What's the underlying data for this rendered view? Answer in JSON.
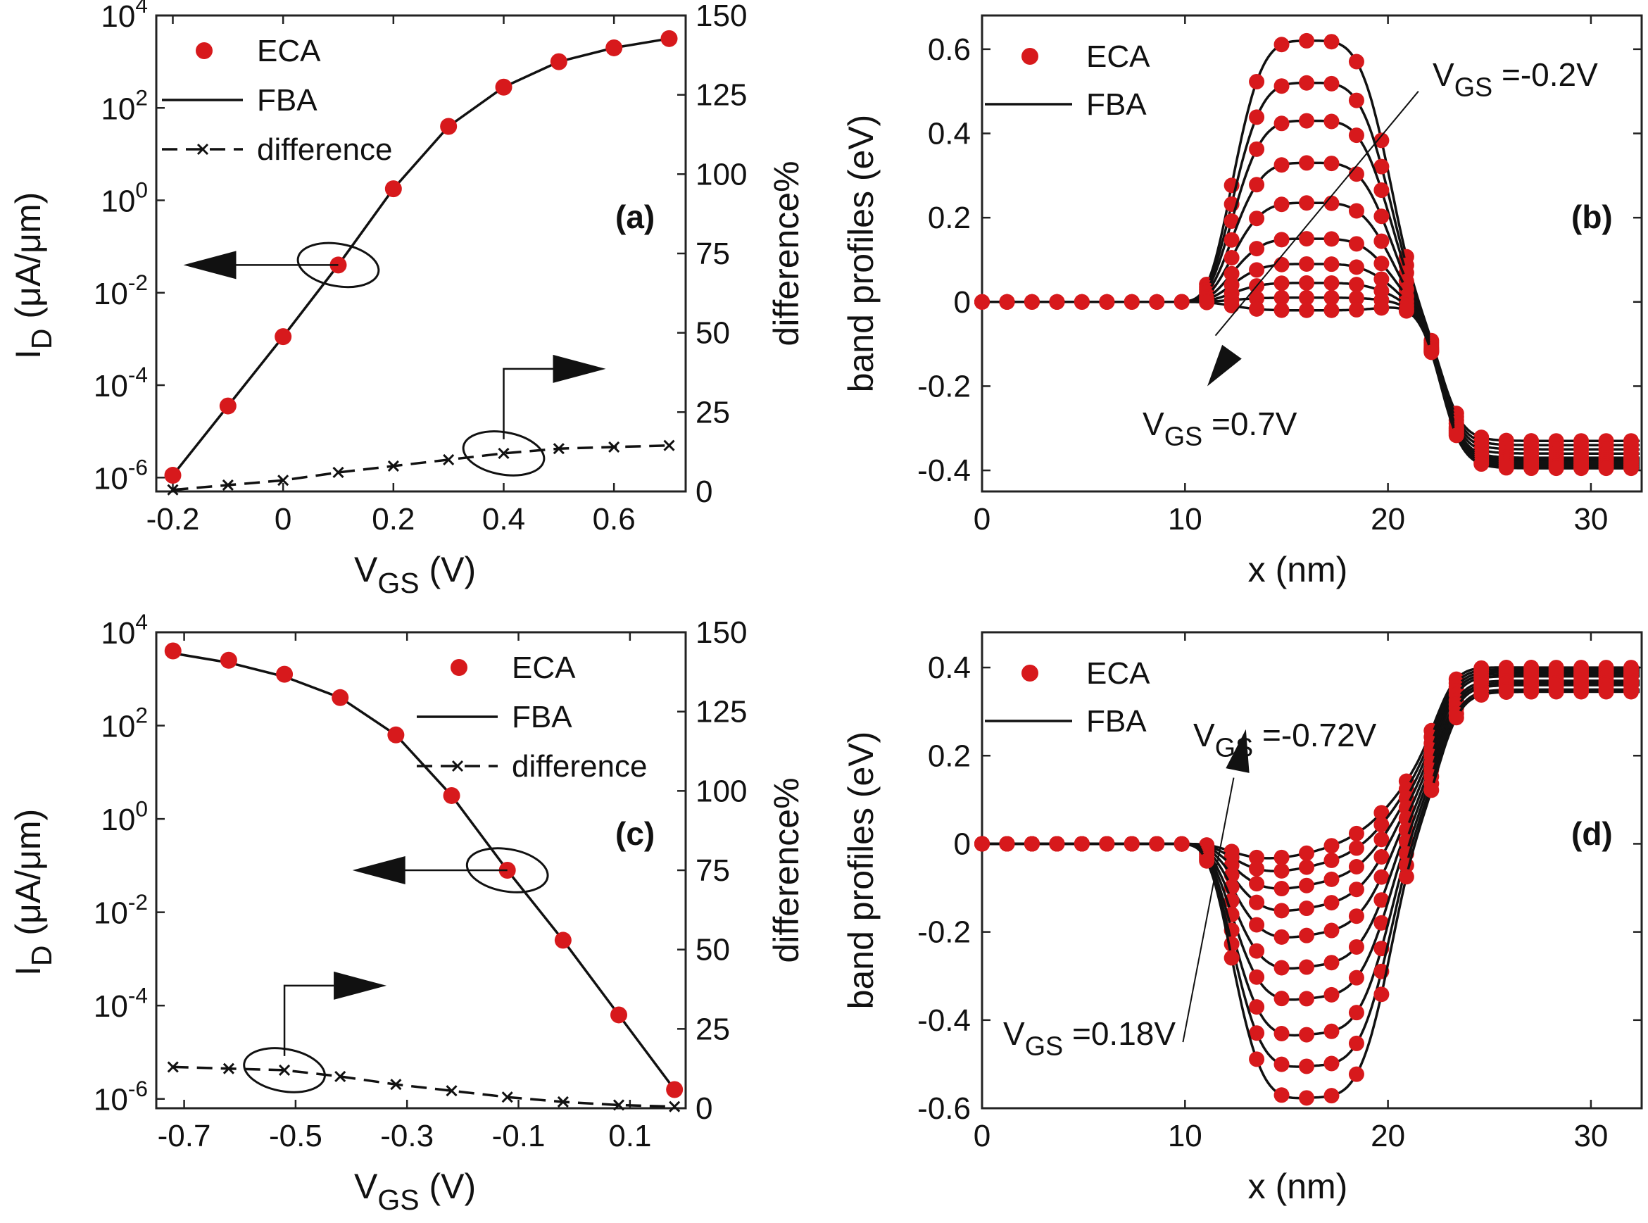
{
  "chart_data": [
    {
      "panel": "a",
      "type": "scatter",
      "panel_label": "(a)",
      "xlabel_main": "V",
      "xlabel_sub": "GS",
      "xlabel_unit": "(V)",
      "ylabel_main": "I",
      "ylabel_sub": "D",
      "ylabel_unit": "(μA/μm)",
      "y2label": "difference%",
      "xlim": [
        -0.23,
        0.73
      ],
      "ylim": [
        -6.3,
        4
      ],
      "yscale": "log",
      "y2lim": [
        0,
        150
      ],
      "xticks": [
        -0.2,
        0,
        0.2,
        0.4,
        0.6
      ],
      "xtick_labels": [
        "-0.2",
        "0",
        "0.2",
        "0.4",
        "0.6"
      ],
      "yticks": [
        -6,
        -4,
        -2,
        0,
        2,
        4
      ],
      "ytick_labels": [
        {
          "base": "10",
          "exp": "-6"
        },
        {
          "base": "10",
          "exp": "-4"
        },
        {
          "base": "10",
          "exp": "-2"
        },
        {
          "base": "10",
          "exp": "0"
        },
        {
          "base": "10",
          "exp": "2"
        },
        {
          "base": "10",
          "exp": "4"
        }
      ],
      "y2ticks": [
        0,
        25,
        50,
        75,
        100,
        125,
        150
      ],
      "y2tick_labels": [
        "0",
        "25",
        "50",
        "75",
        "100",
        "125",
        "150"
      ],
      "legend": {
        "placement": "top-left",
        "eca": "ECA",
        "fba": "FBA",
        "difference": "difference"
      },
      "x": [
        -0.2,
        -0.1,
        0,
        0.1,
        0.2,
        0.3,
        0.4,
        0.5,
        0.6,
        0.7
      ],
      "eca_log10": [
        -5.95,
        -4.45,
        -2.95,
        -1.4,
        0.25,
        1.6,
        2.45,
        3.0,
        3.3,
        3.5
      ],
      "fba_log10": [
        -5.95,
        -4.45,
        -2.95,
        -1.4,
        0.25,
        1.6,
        2.45,
        3.0,
        3.3,
        3.5
      ],
      "difference": [
        0.5,
        2.0,
        3.5,
        6.0,
        8.0,
        10.0,
        12.0,
        13.5,
        14.0,
        14.5
      ],
      "annotations": {
        "left_arrow": {
          "ellipse_at": [
            0.1,
            -1.4
          ],
          "points_to": "left-axis"
        },
        "right_arrow": {
          "ellipse_at": [
            0.4,
            12
          ],
          "points_to": "right-axis"
        }
      }
    },
    {
      "panel": "b",
      "type": "line",
      "panel_label": "(b)",
      "xlabel": "x (nm)",
      "ylabel": "band profiles (eV)",
      "xlim": [
        0,
        32.5
      ],
      "ylim": [
        -0.45,
        0.68
      ],
      "xticks": [
        0,
        10,
        20,
        30
      ],
      "xtick_labels": [
        "0",
        "10",
        "20",
        "30"
      ],
      "yticks": [
        -0.4,
        -0.2,
        0,
        0.2,
        0.4,
        0.6
      ],
      "ytick_labels": [
        "-0.4",
        "-0.2",
        "0",
        "0.2",
        "0.4",
        "0.6"
      ],
      "legend": {
        "placement": "top-left",
        "eca": "ECA",
        "fba": "FBA"
      },
      "annotation_top": {
        "main": "V",
        "sub": "GS",
        "rest": "=-0.2V"
      },
      "annotation_bottom": {
        "main": "V",
        "sub": "GS",
        "rest": "=0.7V"
      },
      "profile_shape": {
        "flat_until": 9.5,
        "rise_center": 10.8,
        "rise_width": 0.55,
        "fall_center": 22.6,
        "fall_width": 0.55,
        "barrier_center": 16.2,
        "barrier_sigma": 4.2
      },
      "curves": [
        {
          "peak": 0.62,
          "right_level": -0.33
        },
        {
          "peak": 0.52,
          "right_level": -0.34
        },
        {
          "peak": 0.43,
          "right_level": -0.35
        },
        {
          "peak": 0.33,
          "right_level": -0.36
        },
        {
          "peak": 0.235,
          "right_level": -0.37
        },
        {
          "peak": 0.15,
          "right_level": -0.375
        },
        {
          "peak": 0.09,
          "right_level": -0.38
        },
        {
          "peak": 0.045,
          "right_level": -0.385
        },
        {
          "peak": 0.01,
          "right_level": -0.39
        },
        {
          "peak": -0.02,
          "right_level": -0.395
        }
      ]
    },
    {
      "panel": "c",
      "type": "scatter",
      "panel_label": "(c)",
      "xlabel_main": "V",
      "xlabel_sub": "GS",
      "xlabel_unit": "(V)",
      "ylabel_main": "I",
      "ylabel_sub": "D",
      "ylabel_unit": "(μA/μm)",
      "y2label": "difference%",
      "xlim": [
        -0.75,
        0.2
      ],
      "ylim": [
        -6.2,
        4
      ],
      "yscale": "log",
      "y2lim": [
        0,
        150
      ],
      "xticks": [
        -0.7,
        -0.5,
        -0.3,
        -0.1,
        0.1
      ],
      "xtick_labels": [
        "-0.7",
        "-0.5",
        "-0.3",
        "-0.1",
        "0.1"
      ],
      "yticks": [
        -6,
        -4,
        -2,
        0,
        2,
        4
      ],
      "ytick_labels": [
        {
          "base": "10",
          "exp": "-6"
        },
        {
          "base": "10",
          "exp": "-4"
        },
        {
          "base": "10",
          "exp": "-2"
        },
        {
          "base": "10",
          "exp": "0"
        },
        {
          "base": "10",
          "exp": "2"
        },
        {
          "base": "10",
          "exp": "4"
        }
      ],
      "y2ticks": [
        0,
        25,
        50,
        75,
        100,
        125,
        150
      ],
      "y2tick_labels": [
        "0",
        "25",
        "50",
        "75",
        "100",
        "125",
        "150"
      ],
      "legend": {
        "placement": "top-right",
        "eca": "ECA",
        "fba": "FBA",
        "difference": "difference"
      },
      "x": [
        -0.72,
        -0.62,
        -0.52,
        -0.42,
        -0.32,
        -0.22,
        -0.12,
        -0.02,
        0.08,
        0.18
      ],
      "eca_log10": [
        3.6,
        3.4,
        3.1,
        2.6,
        1.8,
        0.5,
        -1.1,
        -2.6,
        -4.2,
        -5.8
      ],
      "fba_log10": [
        3.55,
        3.35,
        3.05,
        2.6,
        1.8,
        0.5,
        -1.1,
        -2.6,
        -4.2,
        -5.8
      ],
      "difference": [
        13.0,
        12.5,
        12.0,
        10.0,
        7.5,
        5.5,
        3.5,
        2.0,
        1.0,
        0.5
      ],
      "annotations": {
        "left_arrow": {
          "ellipse_at": [
            -0.12,
            -1.1
          ],
          "points_to": "left-axis"
        },
        "right_arrow": {
          "ellipse_at": [
            -0.52,
            12
          ],
          "points_to": "right-axis"
        }
      }
    },
    {
      "panel": "d",
      "type": "line",
      "panel_label": "(d)",
      "xlabel": "x (nm)",
      "ylabel": "band profiles (eV)",
      "xlim": [
        0,
        32.5
      ],
      "ylim": [
        -0.6,
        0.48
      ],
      "xticks": [
        0,
        10,
        20,
        30
      ],
      "xtick_labels": [
        "0",
        "10",
        "20",
        "30"
      ],
      "yticks": [
        -0.6,
        -0.4,
        -0.2,
        0,
        0.2,
        0.4
      ],
      "ytick_labels": [
        "-0.6",
        "-0.4",
        "-0.2",
        "0",
        "0.2",
        "0.4"
      ],
      "legend": {
        "placement": "top-left",
        "eca": "ECA",
        "fba": "FBA"
      },
      "annotation_top": {
        "main": "V",
        "sub": "GS",
        "rest": "=-0.72V"
      },
      "annotation_bottom": {
        "main": "V",
        "sub": "GS",
        "rest": "=0.18V"
      },
      "profile_shape": {
        "flat_until": 9.5,
        "rise_center": 10.8,
        "rise_width": 0.55,
        "fall_center": 22.6,
        "fall_width": 0.55,
        "barrier_center": 16.2,
        "barrier_sigma": 4.2
      },
      "curves": [
        {
          "well": -0.04,
          "right_level": 0.4,
          "ramp": 0.22
        },
        {
          "well": -0.07,
          "right_level": 0.395,
          "ramp": 0.2
        },
        {
          "well": -0.11,
          "right_level": 0.39,
          "ramp": 0.18
        },
        {
          "well": -0.16,
          "right_level": 0.385,
          "ramp": 0.16
        },
        {
          "well": -0.22,
          "right_level": 0.38,
          "ramp": 0.14
        },
        {
          "well": -0.29,
          "right_level": 0.37,
          "ramp": 0.12
        },
        {
          "well": -0.36,
          "right_level": 0.365,
          "ramp": 0.1
        },
        {
          "well": -0.44,
          "right_level": 0.36,
          "ramp": 0.08
        },
        {
          "well": -0.51,
          "right_level": 0.35,
          "ramp": 0.06
        },
        {
          "well": -0.58,
          "right_level": 0.345,
          "ramp": 0.04
        }
      ]
    }
  ]
}
